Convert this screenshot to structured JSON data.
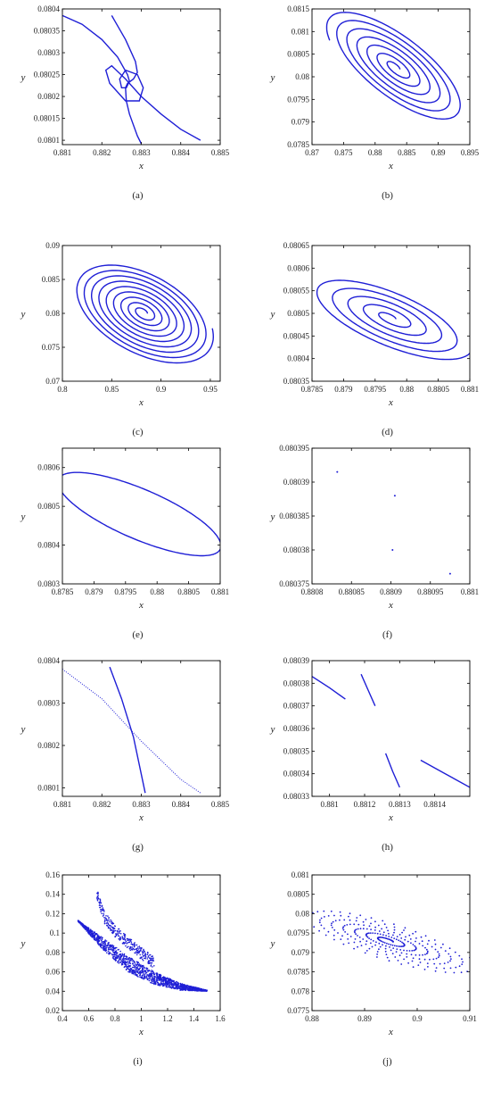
{
  "figure": {
    "title": "",
    "series_color": "#1f1fd6"
  },
  "chart_data": [
    {
      "id": "a",
      "caption": "(a)",
      "type": "line",
      "xlabel": "x",
      "ylabel": "y",
      "xlim": [
        0.881,
        0.885
      ],
      "ylim": [
        0.08009,
        0.0804
      ],
      "xticks": [
        0.881,
        0.882,
        0.883,
        0.884,
        0.885
      ],
      "xticklabels": [
        "0.881",
        "0.882",
        "0.883",
        "0.884",
        "0.885"
      ],
      "yticks": [
        0.0801,
        0.08015,
        0.0802,
        0.08025,
        0.0803,
        0.08035,
        0.0804
      ],
      "yticklabels": [
        "0.0801",
        "0.08015",
        "0.0802",
        "0.08025",
        "0.0803",
        "0.08035",
        "0.0804"
      ],
      "series": [
        {
          "style": "line",
          "points": [
            [
              0.881,
              0.080385
            ],
            [
              0.8815,
              0.080365
            ],
            [
              0.882,
              0.08033
            ],
            [
              0.8824,
              0.08029
            ],
            [
              0.88265,
              0.08025
            ],
            [
              0.8827,
              0.080235
            ],
            [
              0.88262,
              0.08022
            ],
            [
              0.8825,
              0.08022
            ],
            [
              0.88245,
              0.08024
            ],
            [
              0.8826,
              0.08026
            ],
            [
              0.8829,
              0.08025
            ],
            [
              0.88305,
              0.08022
            ],
            [
              0.88295,
              0.08019
            ],
            [
              0.8826,
              0.08019
            ],
            [
              0.8822,
              0.08023
            ],
            [
              0.8821,
              0.08026
            ],
            [
              0.88225,
              0.08027
            ],
            [
              0.8826,
              0.08024
            ],
            [
              0.883,
              0.0802
            ],
            [
              0.8835,
              0.08016
            ],
            [
              0.884,
              0.080125
            ],
            [
              0.8845,
              0.0801
            ]
          ]
        },
        {
          "style": "line",
          "points": [
            [
              0.88225,
              0.080385
            ],
            [
              0.8826,
              0.08033
            ],
            [
              0.88285,
              0.08028
            ],
            [
              0.8829,
              0.080255
            ],
            [
              0.8828,
              0.08024
            ],
            [
              0.88265,
              0.08023
            ],
            [
              0.8826,
              0.08022
            ],
            [
              0.88262,
              0.08019
            ],
            [
              0.8827,
              0.08016
            ],
            [
              0.8829,
              0.08011
            ],
            [
              0.883,
              0.080092
            ]
          ]
        }
      ]
    },
    {
      "id": "b",
      "caption": "(b)",
      "type": "line",
      "xlabel": "x",
      "ylabel": "y",
      "xlim": [
        0.87,
        0.895
      ],
      "ylim": [
        0.0785,
        0.0815
      ],
      "xticks": [
        0.87,
        0.875,
        0.88,
        0.885,
        0.89,
        0.895
      ],
      "xticklabels": [
        "0.87",
        "0.875",
        "0.88",
        "0.885",
        "0.89",
        "0.895"
      ],
      "yticks": [
        0.0785,
        0.079,
        0.0795,
        0.08,
        0.0805,
        0.081,
        0.0815
      ],
      "yticklabels": [
        "0.0785",
        "0.079",
        "0.0795",
        "0.08",
        "0.0805",
        "0.081",
        "0.0815"
      ],
      "spiral": {
        "cx": 0.8833,
        "cy": 0.0802,
        "rx_max": 0.0105,
        "ry_max": 0.0011,
        "tilt": -0.55,
        "turns": 6.5
      }
    },
    {
      "id": "c",
      "caption": "(c)",
      "type": "line",
      "xlabel": "x",
      "ylabel": "y",
      "xlim": [
        0.8,
        0.96
      ],
      "ylim": [
        0.07,
        0.09
      ],
      "xticks": [
        0.8,
        0.85,
        0.9,
        0.95
      ],
      "xticklabels": [
        "0.8",
        "0.85",
        "0.9",
        "0.95"
      ],
      "yticks": [
        0.07,
        0.075,
        0.08,
        0.085,
        0.09
      ],
      "yticklabels": [
        "0.07",
        "0.075",
        "0.08",
        "0.085",
        "0.09"
      ],
      "spiral": {
        "cx": 0.882,
        "cy": 0.0801,
        "rx_max": 0.07,
        "ry_max": 0.0072,
        "tilt": -0.32,
        "turns": 9
      }
    },
    {
      "id": "d",
      "caption": "(d)",
      "type": "line",
      "xlabel": "x",
      "ylabel": "y",
      "xlim": [
        0.8785,
        0.881
      ],
      "ylim": [
        0.08035,
        0.08065
      ],
      "xticks": [
        0.8785,
        0.879,
        0.8795,
        0.88,
        0.8805,
        0.881
      ],
      "xticklabels": [
        "0.8785",
        "0.879",
        "0.8795",
        "0.88",
        "0.8805",
        "0.881"
      ],
      "yticks": [
        0.08035,
        0.0804,
        0.08045,
        0.0805,
        0.08055,
        0.0806,
        0.08065
      ],
      "yticklabels": [
        "0.08035",
        "0.0804",
        "0.08045",
        "0.0805",
        "0.08055",
        "0.0806",
        "0.08065"
      ],
      "spiral": {
        "cx": 0.87975,
        "cy": 0.08049,
        "rx_max": 0.00125,
        "ry_max": 8.5e-05,
        "tilt": -0.5,
        "turns": 5
      }
    },
    {
      "id": "e",
      "caption": "(e)",
      "type": "line",
      "xlabel": "x",
      "ylabel": "y",
      "xlim": [
        0.8785,
        0.881
      ],
      "ylim": [
        0.0803,
        0.08065
      ],
      "xticks": [
        0.8785,
        0.879,
        0.8795,
        0.88,
        0.8805,
        0.881
      ],
      "xticklabels": [
        "0.8785",
        "0.879",
        "0.8795",
        "0.88",
        "0.8805",
        "0.881"
      ],
      "yticks": [
        0.0803,
        0.0804,
        0.0805,
        0.0806
      ],
      "yticklabels": [
        "0.0803",
        "0.0804",
        "0.0805",
        "0.0806"
      ],
      "ellipse": {
        "cx": 0.87972,
        "cy": 0.08048,
        "rx": 0.00128,
        "ry": 8e-05,
        "tilt": -0.56
      }
    },
    {
      "id": "f",
      "caption": "(f)",
      "type": "scatter",
      "xlabel": "x",
      "ylabel": "y",
      "xlim": [
        0.8808,
        0.881
      ],
      "ylim": [
        0.080375,
        0.080395
      ],
      "xticks": [
        0.8808,
        0.88085,
        0.8809,
        0.88095,
        0.881
      ],
      "xticklabels": [
        "0.8808",
        "0.88085",
        "0.8809",
        "0.88095",
        "0.881"
      ],
      "yticks": [
        0.080375,
        0.08038,
        0.080385,
        0.08039,
        0.080395
      ],
      "yticklabels": [
        "0.080375",
        "0.08038",
        "0.080385",
        "0.08039",
        "0.080395"
      ],
      "series": [
        {
          "style": "dots",
          "points": [
            [
              0.880832,
              0.0803915
            ],
            [
              0.880905,
              0.080388
            ],
            [
              0.880902,
              0.08038
            ],
            [
              0.880975,
              0.0803765
            ]
          ]
        }
      ]
    },
    {
      "id": "g",
      "caption": "(g)",
      "type": "line",
      "xlabel": "x",
      "ylabel": "y",
      "xlim": [
        0.881,
        0.885
      ],
      "ylim": [
        0.08008,
        0.0804
      ],
      "xticks": [
        0.881,
        0.882,
        0.883,
        0.884,
        0.885
      ],
      "xticklabels": [
        "0.881",
        "0.882",
        "0.883",
        "0.884",
        "0.885"
      ],
      "yticks": [
        0.0801,
        0.0802,
        0.0803,
        0.0804
      ],
      "yticklabels": [
        "0.0801",
        "0.0802",
        "0.0803",
        "0.0804"
      ],
      "series": [
        {
          "style": "dotted",
          "points": [
            [
              0.881,
              0.08038
            ],
            [
              0.882,
              0.08031
            ],
            [
              0.883,
              0.08021
            ],
            [
              0.884,
              0.08012
            ],
            [
              0.8845,
              0.080088
            ]
          ]
        },
        {
          "style": "line",
          "points": [
            [
              0.8822,
              0.080385
            ],
            [
              0.8825,
              0.08031
            ],
            [
              0.8828,
              0.08022
            ],
            [
              0.8831,
              0.080088
            ]
          ]
        }
      ]
    },
    {
      "id": "h",
      "caption": "(h)",
      "type": "line",
      "xlabel": "x",
      "ylabel": "y",
      "xlim": [
        0.88105,
        0.8815
      ],
      "ylim": [
        0.08033,
        0.08039
      ],
      "xticks": [
        0.8811,
        0.8812,
        0.8813,
        0.8814
      ],
      "xticklabels": [
        "0.881",
        "0.8812",
        "0.8813",
        "0.8814"
      ],
      "yticks": [
        0.08033,
        0.08034,
        0.08035,
        0.08036,
        0.08037,
        0.08038,
        0.08039
      ],
      "yticklabels": [
        "0.08033",
        "0.08034",
        "0.08035",
        "0.08036",
        "0.08037",
        "0.08038",
        "0.08039"
      ],
      "series": [
        {
          "style": "line",
          "points": [
            [
              0.88105,
              0.080383
            ],
            [
              0.8811,
              0.080378
            ],
            [
              0.881145,
              0.080373
            ]
          ]
        },
        {
          "style": "line",
          "points": [
            [
              0.88119,
              0.080384
            ],
            [
              0.88121,
              0.080377
            ],
            [
              0.88123,
              0.08037
            ]
          ]
        },
        {
          "style": "line",
          "points": [
            [
              0.88126,
              0.080349
            ],
            [
              0.88128,
              0.080341
            ],
            [
              0.8813,
              0.080334
            ]
          ]
        },
        {
          "style": "line",
          "points": [
            [
              0.88136,
              0.080346
            ],
            [
              0.88143,
              0.08034
            ],
            [
              0.8815,
              0.080334
            ]
          ]
        }
      ]
    },
    {
      "id": "i",
      "caption": "(i)",
      "type": "scatter",
      "xlabel": "x",
      "ylabel": "y",
      "xlim": [
        0.4,
        1.6
      ],
      "ylim": [
        0.02,
        0.16
      ],
      "xticks": [
        0.4,
        0.6,
        0.8,
        1.0,
        1.2,
        1.4,
        1.6
      ],
      "xticklabels": [
        "0.4",
        "0.6",
        "0.8",
        "1",
        "1.2",
        "1.4",
        "1.6"
      ],
      "yticks": [
        0.02,
        0.04,
        0.06,
        0.08,
        0.1,
        0.12,
        0.14,
        0.16
      ],
      "yticklabels": [
        "0.02",
        "0.04",
        "0.06",
        "0.08",
        "0.1",
        "0.12",
        "0.14",
        "0.16"
      ],
      "band": {
        "outer": [
          [
            0.52,
            0.113
          ],
          [
            0.7,
            0.096
          ],
          [
            0.9,
            0.076
          ],
          [
            1.1,
            0.06
          ],
          [
            1.3,
            0.048
          ],
          [
            1.5,
            0.041
          ]
        ],
        "inner": [
          [
            0.52,
            0.112
          ],
          [
            0.7,
            0.084
          ],
          [
            0.9,
            0.06
          ],
          [
            1.1,
            0.047
          ],
          [
            1.3,
            0.041
          ],
          [
            1.5,
            0.04
          ]
        ],
        "horn": [
          [
            0.66,
            0.147
          ],
          [
            0.72,
            0.122
          ],
          [
            0.8,
            0.108
          ],
          [
            0.9,
            0.096
          ],
          [
            1.0,
            0.085
          ],
          [
            1.1,
            0.075
          ]
        ]
      }
    },
    {
      "id": "j",
      "caption": "(j)",
      "type": "scatter",
      "xlabel": "x",
      "ylabel": "y",
      "xlim": [
        0.88,
        0.91
      ],
      "ylim": [
        0.0775,
        0.081
      ],
      "xticks": [
        0.88,
        0.89,
        0.9,
        0.91
      ],
      "xticklabels": [
        "0.88",
        "0.89",
        "0.9",
        "0.91"
      ],
      "yticks": [
        0.0775,
        0.078,
        0.0785,
        0.079,
        0.0795,
        0.08,
        0.0805,
        0.081
      ],
      "yticklabels": [
        "0.0775",
        "0.078",
        "0.0785",
        "0.079",
        "0.0795",
        "0.08",
        "0.0805",
        "0.081"
      ],
      "spiral": {
        "cx": 0.8945,
        "cy": 0.0793,
        "rx_max": 0.0155,
        "ry_max": 0.00072,
        "tilt": -0.6,
        "turns": 7,
        "dotted": true
      }
    }
  ]
}
